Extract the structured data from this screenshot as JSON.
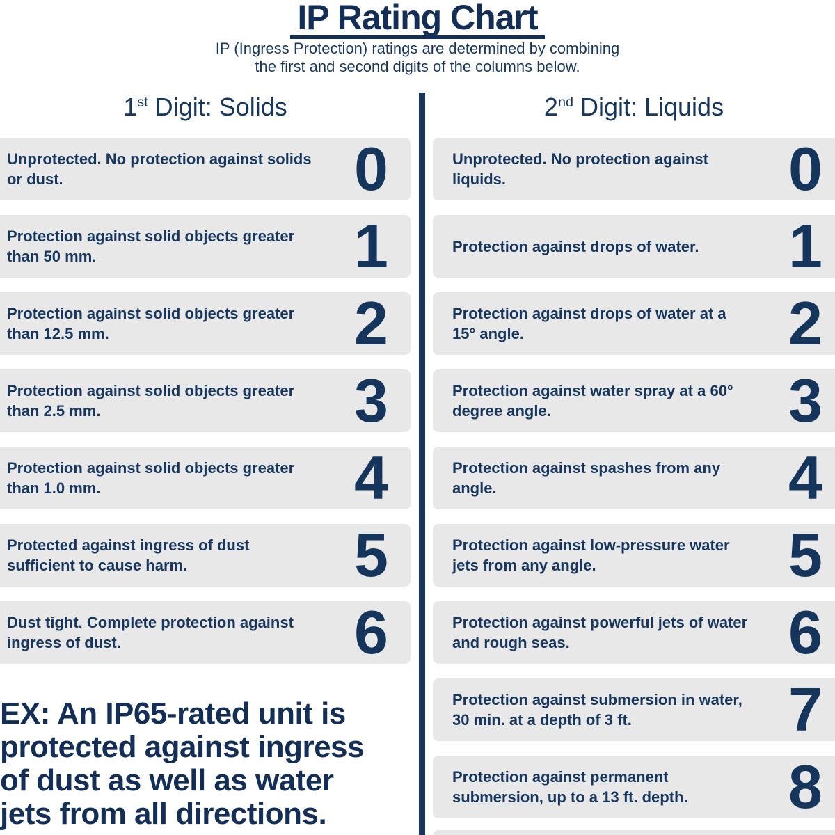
{
  "colors": {
    "navy": "#17375e",
    "navy_dark": "#142f57",
    "box_bg": "#e8e8e8",
    "page_bg": "#ffffff"
  },
  "header": {
    "title": "IP Rating Chart",
    "subtitle_line1": "IP (Ingress Protection) ratings are determined by combining",
    "subtitle_line2": "the first and second digits of the columns below."
  },
  "columns": {
    "solids": {
      "heading": {
        "number": "1",
        "ordinal": "st",
        "label": " Digit: Solids"
      },
      "rows": [
        {
          "digit": "0",
          "text": "Unprotected. No protection against solids or dust."
        },
        {
          "digit": "1",
          "text": "Protection against solid objects greater than 50 mm."
        },
        {
          "digit": "2",
          "text": "Protection against solid objects greater than 12.5 mm."
        },
        {
          "digit": "3",
          "text": "Protection against solid objects greater than 2.5 mm."
        },
        {
          "digit": "4",
          "text": "Protection against solid objects greater than 1.0 mm."
        },
        {
          "digit": "5",
          "text": "Protected against ingress of dust sufficient to cause harm."
        },
        {
          "digit": "6",
          "text": "Dust tight. Complete protection against ingress of dust."
        }
      ]
    },
    "liquids": {
      "heading": {
        "number": "2",
        "ordinal": "nd",
        "label": " Digit: Liquids"
      },
      "rows": [
        {
          "digit": "0",
          "text": "Unprotected. No protection against liquids."
        },
        {
          "digit": "1",
          "text": "Protection against drops of water."
        },
        {
          "digit": "2",
          "text": "Protection against drops of water at a 15° angle."
        },
        {
          "digit": "3",
          "text": "Protection against water spray at a 60° degree angle."
        },
        {
          "digit": "4",
          "text": "Protection against spashes from any angle."
        },
        {
          "digit": "5",
          "text": "Protection against low-pressure water jets from any angle."
        },
        {
          "digit": "6",
          "text": "Protection against powerful jets of water and rough seas."
        },
        {
          "digit": "7",
          "text": "Protection against submersion in water, 30 min. at a depth of 3 ft."
        },
        {
          "digit": "8",
          "text": "Protection against permanent submersion, up to a 13 ft. depth."
        }
      ]
    }
  },
  "example": {
    "lines": [
      "EX: An IP65-rated unit is",
      "protected against ingress",
      "of dust as well as water",
      "jets from all directions."
    ]
  }
}
